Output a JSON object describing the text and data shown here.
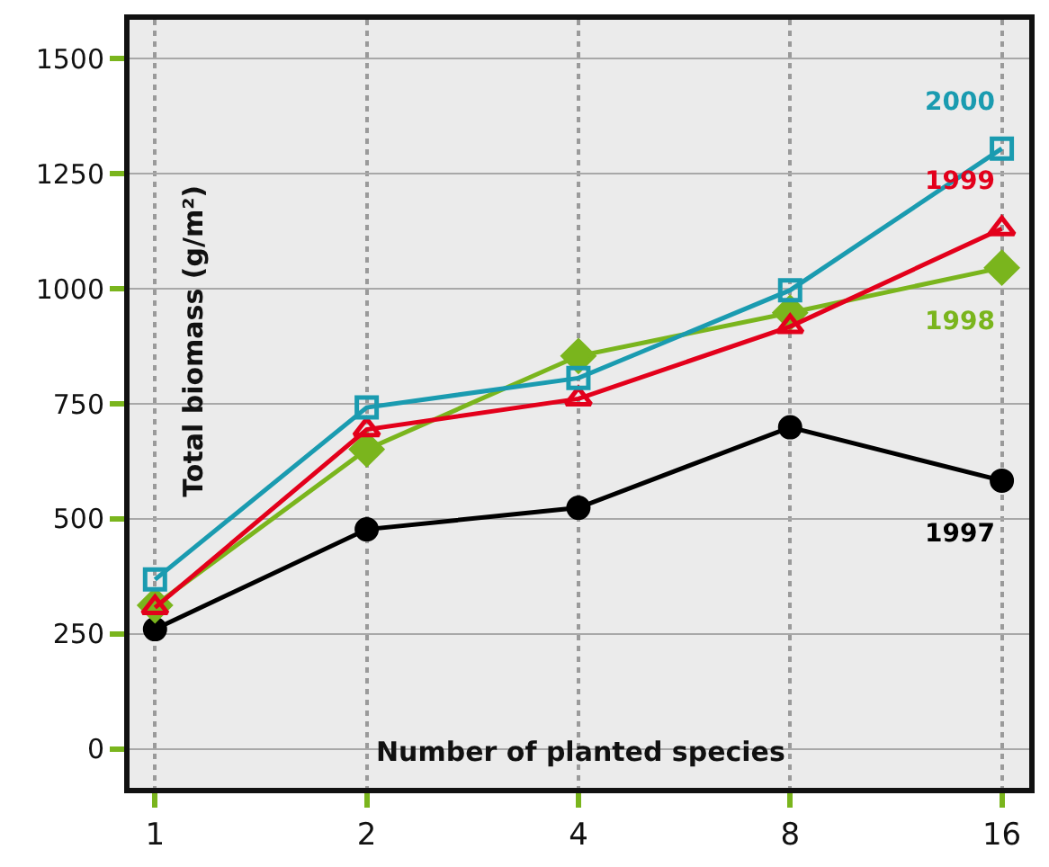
{
  "chart_data": {
    "type": "line",
    "xlabel": "Number of planted species",
    "ylabel": "Total biomass (g/m²)",
    "x": [
      1,
      2,
      4,
      8,
      16
    ],
    "log": "x",
    "xlim": [
      0.92,
      17.5
    ],
    "xticks": [
      1,
      2,
      4,
      8,
      16
    ],
    "ylim": [
      -85,
      1585
    ],
    "yticks": [
      0,
      250,
      500,
      750,
      1000,
      1250,
      1500
    ],
    "grid": true,
    "legend": false,
    "series": [
      {
        "name": "1997",
        "color": "#000000",
        "marker": "circle",
        "values": [
          260,
          477,
          524,
          699,
          583
        ]
      },
      {
        "name": "1998",
        "color": "#7ab51d",
        "marker": "diamond",
        "values": [
          312,
          651,
          854,
          948,
          1046
        ]
      },
      {
        "name": "1999",
        "color": "#e3001b",
        "marker": "triangle",
        "values": [
          307,
          694,
          761,
          918,
          1131
        ]
      },
      {
        "name": "2000",
        "color": "#1a9bb0",
        "marker": "square",
        "values": [
          368,
          742,
          806,
          997,
          1305
        ]
      }
    ]
  }
}
